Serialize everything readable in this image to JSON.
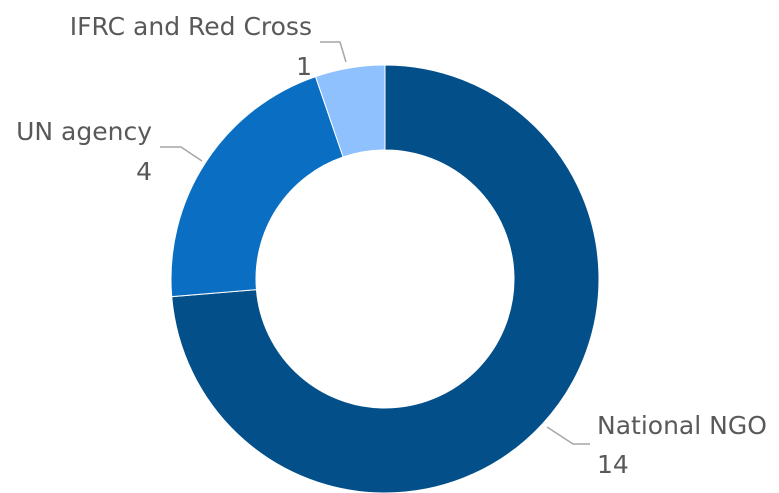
{
  "chart_data": {
    "type": "pie",
    "variant": "donut",
    "slices": [
      {
        "label": "National NGO",
        "value": 14,
        "color": "#034f8a"
      },
      {
        "label": "UN agency",
        "value": 4,
        "color": "#0a6fc2"
      },
      {
        "label": "IFRC and Red Cross",
        "value": 1,
        "color": "#8fc1ff"
      }
    ],
    "start_direction": "top",
    "order": "clockwise",
    "legend": "none",
    "data_labels": "outside with leader lines (category name above value)"
  }
}
